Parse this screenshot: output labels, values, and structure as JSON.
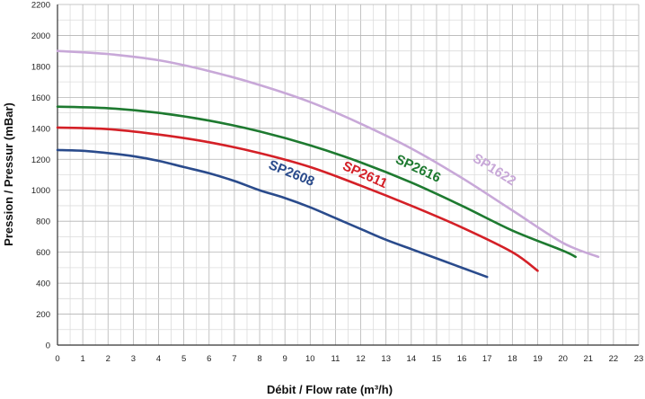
{
  "chart_data": {
    "type": "line",
    "xlabel": "Débit / Flow rate (m³/h)",
    "ylabel": "Pression / Pressur (mBar)",
    "xlim": [
      0,
      23
    ],
    "ylim": [
      0,
      2200
    ],
    "xticks": [
      0,
      1,
      2,
      3,
      4,
      5,
      6,
      7,
      8,
      9,
      10,
      11,
      12,
      13,
      14,
      15,
      16,
      17,
      18,
      19,
      20,
      21,
      22,
      23
    ],
    "yticks": [
      0,
      200,
      400,
      600,
      800,
      1000,
      1200,
      1400,
      1600,
      1800,
      2000,
      2200
    ],
    "x_minor_step": 0.5,
    "y_minor_step": 100,
    "grid": true,
    "series": [
      {
        "name": "SP1622",
        "color": "#c8a8d8",
        "x": [
          0,
          2,
          4,
          6,
          8,
          10,
          12,
          14,
          16,
          18,
          20,
          21.4
        ],
        "y": [
          1900,
          1880,
          1840,
          1770,
          1680,
          1570,
          1430,
          1270,
          1080,
          870,
          660,
          570
        ]
      },
      {
        "name": "SP2616",
        "color": "#1e7a30",
        "x": [
          0,
          2,
          4,
          6,
          8,
          10,
          12,
          14,
          16,
          18,
          20,
          20.5
        ],
        "y": [
          1540,
          1530,
          1500,
          1450,
          1380,
          1290,
          1180,
          1050,
          900,
          740,
          610,
          570
        ]
      },
      {
        "name": "SP2611",
        "color": "#d42027",
        "x": [
          0,
          2,
          4,
          6,
          8,
          10,
          12,
          14,
          16,
          18,
          19
        ],
        "y": [
          1405,
          1395,
          1360,
          1310,
          1240,
          1150,
          1030,
          900,
          760,
          600,
          480
        ]
      },
      {
        "name": "SP2608",
        "color": "#2a4b8c",
        "x": [
          0,
          1,
          2,
          3,
          4,
          5,
          6,
          7,
          8,
          9,
          10,
          11,
          12,
          13,
          14,
          15,
          16,
          17
        ],
        "y": [
          1260,
          1255,
          1240,
          1220,
          1190,
          1150,
          1110,
          1060,
          1000,
          950,
          890,
          820,
          750,
          680,
          620,
          560,
          500,
          440
        ]
      }
    ],
    "labels": [
      {
        "text": "SP2608",
        "series": 3,
        "x": 9.2,
        "y": 1085,
        "angle": 22
      },
      {
        "text": "SP2611",
        "series": 2,
        "x": 12.1,
        "y": 1075,
        "angle": 24
      },
      {
        "text": "SP2616",
        "series": 1,
        "x": 14.2,
        "y": 1115,
        "angle": 25
      },
      {
        "text": "SP1622",
        "series": 0,
        "x": 17.2,
        "y": 1110,
        "angle": 32
      }
    ]
  }
}
